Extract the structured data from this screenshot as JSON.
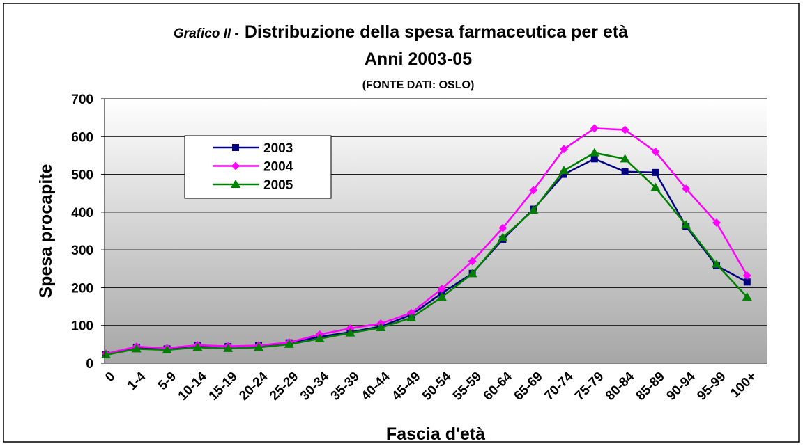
{
  "chart_data": {
    "type": "line",
    "title_prefix": "Grafico II -",
    "title": "Distribuzione della spesa farmaceutica per età",
    "subtitle": "Anni 2003-05",
    "source": "(FONTE DATI: OSLO)",
    "x_label": "Fascia d'età",
    "y_label": "Spesa procapite",
    "categories": [
      "0",
      "1-4",
      "5-9",
      "10-14",
      "15-19",
      "20-24",
      "25-29",
      "30-34",
      "35-39",
      "40-44",
      "45-49",
      "50-54",
      "55-59",
      "60-64",
      "65-69",
      "70-74",
      "75-79",
      "80-84",
      "85-89",
      "90-94",
      "95-99",
      "100+"
    ],
    "series": [
      {
        "name": "2003",
        "color": "#000080",
        "marker": "square",
        "values": [
          22,
          42,
          38,
          47,
          44,
          46,
          54,
          70,
          82,
          97,
          128,
          185,
          238,
          328,
          408,
          500,
          541,
          507,
          505,
          362,
          258,
          215
        ]
      },
      {
        "name": "2004",
        "color": "#ff00ff",
        "marker": "diamond",
        "values": [
          25,
          44,
          40,
          48,
          45,
          47,
          55,
          76,
          92,
          105,
          133,
          197,
          270,
          358,
          458,
          567,
          622,
          618,
          560,
          462,
          372,
          232
        ]
      },
      {
        "name": "2005",
        "color": "#008000",
        "marker": "triangle",
        "values": [
          22,
          38,
          35,
          42,
          39,
          42,
          50,
          65,
          80,
          94,
          120,
          175,
          237,
          333,
          405,
          510,
          557,
          541,
          465,
          366,
          262,
          175
        ]
      }
    ],
    "ylim": [
      0,
      700
    ],
    "yticks": [
      0,
      100,
      200,
      300,
      400,
      500,
      600,
      700
    ],
    "grid": true,
    "legend": "upper left"
  }
}
